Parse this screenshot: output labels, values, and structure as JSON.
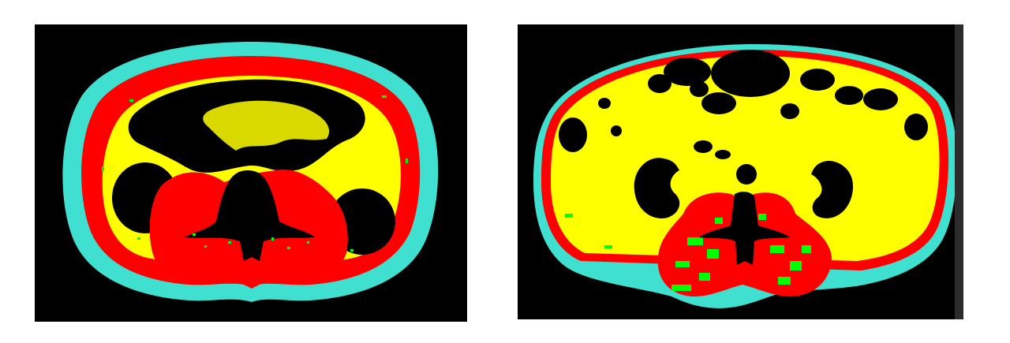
{
  "figure": {
    "panels": [
      {
        "id": "left",
        "kind": "segmentation-map",
        "regions": [
          "subcutaneous-fat",
          "muscle",
          "visceral-fat",
          "intramuscular-fat",
          "background"
        ]
      },
      {
        "id": "right",
        "kind": "segmentation-map",
        "regions": [
          "subcutaneous-fat",
          "muscle",
          "visceral-fat",
          "intramuscular-fat",
          "background"
        ]
      }
    ],
    "colors": {
      "background": "#000000",
      "subcutaneous_fat": "#40E0D0",
      "muscle": "#FF0000",
      "visceral_fat": "#FFFF00",
      "intramuscular_fat": "#00FF00",
      "page": "#FFFFFF"
    }
  }
}
